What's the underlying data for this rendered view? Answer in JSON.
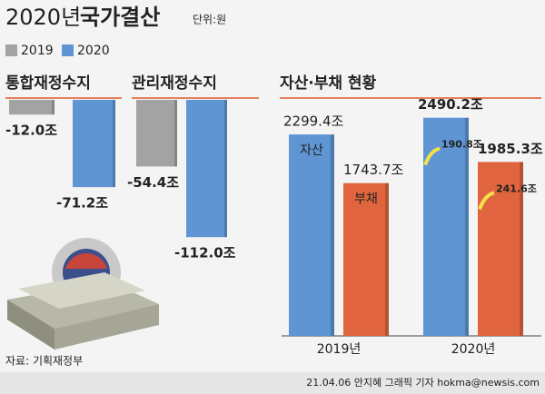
{
  "title": "2020년",
  "title_bold": "국가결산",
  "unit": "단위:원",
  "legend": [
    {
      "name": "2019",
      "color": "#a3a3a3"
    },
    {
      "name": "2020",
      "color": "#5f95d2"
    }
  ],
  "chart_data": [
    {
      "type": "bar",
      "title": "통합재정수지",
      "values": [
        -12.0,
        -71.2
      ],
      "value_labels": [
        "-12.0조",
        "-71.2조"
      ]
    },
    {
      "type": "bar",
      "title": "관리재정수지",
      "values": [
        -54.4,
        -112.0
      ],
      "value_labels": [
        "-54.4조",
        "-112.0조"
      ]
    },
    {
      "type": "grouped_bar",
      "title": "자산·부채 현황",
      "categories": [
        "2019년",
        "2020년"
      ],
      "series": [
        {
          "name": "자산",
          "color": "#5f95d2",
          "values": [
            2299.4,
            2490.2
          ],
          "value_labels": [
            "2299.4조",
            "2490.2조"
          ],
          "changes": [
            null,
            190.8
          ],
          "change_labels": [
            null,
            "190.8조"
          ]
        },
        {
          "name": "부채",
          "color": "#e0653f",
          "values": [
            1743.7,
            1985.3
          ],
          "value_labels": [
            "1743.7조",
            "1985.3조"
          ],
          "changes": [
            null,
            241.6
          ],
          "change_labels": [
            null,
            "241.6조"
          ]
        }
      ]
    }
  ],
  "source": "자료: 기획재정부",
  "credit": "21.04.06 안지혜 그래픽 기자 hokma@newsis.com"
}
